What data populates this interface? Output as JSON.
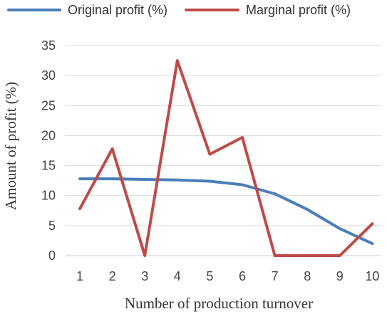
{
  "chart_data": {
    "type": "line",
    "title": "",
    "xlabel": "Number of production turnover",
    "ylabel": "Amount of profit (%)",
    "x": [
      1,
      2,
      3,
      4,
      5,
      6,
      7,
      8,
      9,
      10
    ],
    "ylim": [
      0,
      35
    ],
    "yticks": [
      0,
      5,
      10,
      15,
      20,
      25,
      30,
      35
    ],
    "grid": true,
    "legend_position": "top",
    "series": [
      {
        "name": "Original profit (%)",
        "color": "#4a7ebb",
        "values": [
          12.8,
          12.8,
          12.7,
          12.6,
          12.4,
          11.8,
          10.3,
          7.7,
          4.5,
          2.0
        ]
      },
      {
        "name": "Marginal profit (%)",
        "color": "#be4b48",
        "values": [
          7.8,
          17.8,
          0,
          32.5,
          16.9,
          19.7,
          0,
          0,
          0,
          5.3
        ]
      }
    ]
  }
}
